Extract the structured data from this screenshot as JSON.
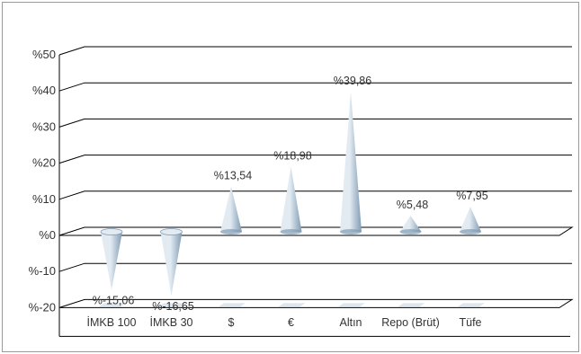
{
  "chart_data": {
    "type": "bar",
    "title": "",
    "xlabel": "",
    "ylabel": "",
    "categories": [
      "İMKB 100",
      "İMKB 30",
      "$",
      "€",
      "Altın",
      "Repo (Brüt)",
      "Tüfe"
    ],
    "values": [
      -15.06,
      -16.65,
      13.54,
      18.98,
      39.86,
      5.48,
      7.95
    ],
    "data_labels": [
      "%-15,06",
      "%-16,65",
      "%13,54",
      "%18,98",
      "%39,86",
      "%5,48",
      "%7,95"
    ],
    "y_ticks": [
      {
        "value": 50,
        "label": "%50"
      },
      {
        "value": 40,
        "label": "%40"
      },
      {
        "value": 30,
        "label": "%30"
      },
      {
        "value": 20,
        "label": "%20"
      },
      {
        "value": 10,
        "label": "%10"
      },
      {
        "value": 0,
        "label": "%0"
      },
      {
        "value": -10,
        "label": "%-10"
      },
      {
        "value": -20,
        "label": "%-20"
      }
    ],
    "ylim": [
      -20,
      50
    ],
    "grid": true,
    "legend": "none",
    "mark_shape": "cone",
    "colors": {
      "cone_light": "#e3ebf2",
      "cone_dark": "#7f9bb3",
      "grid": "#000000",
      "text": "#333333"
    }
  }
}
